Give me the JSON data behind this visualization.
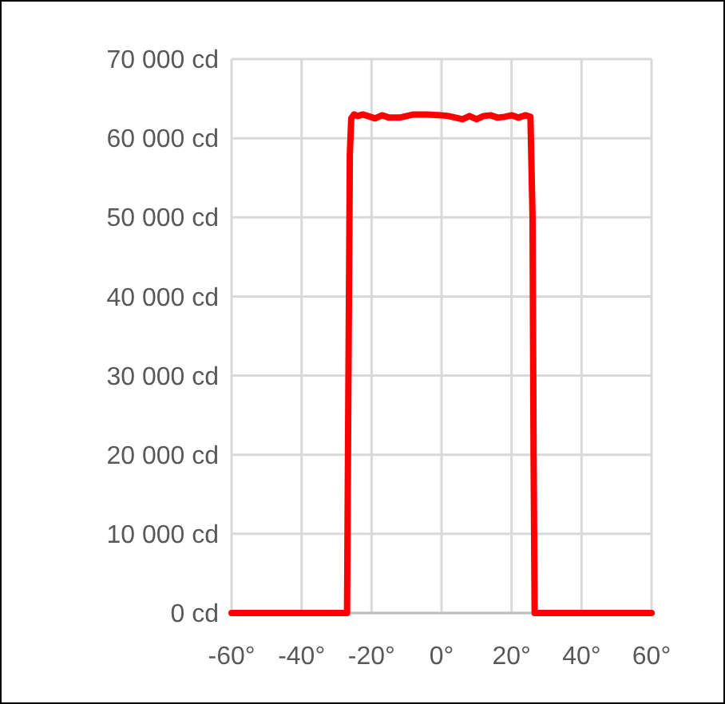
{
  "chart_data": {
    "type": "line",
    "x": [
      -60,
      -27,
      -26.6,
      -26.2,
      -25.8,
      -25,
      -24,
      -22.5,
      -21,
      -19,
      -17,
      -15,
      -12,
      -10,
      -8,
      -4,
      0,
      2,
      4,
      6,
      8,
      10,
      12,
      14,
      16,
      18,
      20,
      22,
      24,
      25.4,
      26,
      26.3,
      26.6,
      60
    ],
    "series": [
      {
        "color": "#ff0000",
        "values": [
          0,
          0,
          30000,
          58000,
          62500,
          63000,
          62800,
          63000,
          62800,
          62500,
          62900,
          62600,
          62600,
          62800,
          63000,
          63000,
          62900,
          62800,
          62600,
          62400,
          62800,
          62400,
          62800,
          62900,
          62600,
          62700,
          62900,
          62600,
          62900,
          62700,
          50000,
          20000,
          0,
          0
        ]
      }
    ],
    "xlim": [
      -60,
      60
    ],
    "xticks": [
      {
        "value": -60,
        "label": "-60°"
      },
      {
        "value": -40,
        "label": "-40°"
      },
      {
        "value": -20,
        "label": "-20°"
      },
      {
        "value": 0,
        "label": "0°"
      },
      {
        "value": 20,
        "label": "20°"
      },
      {
        "value": 40,
        "label": "40°"
      },
      {
        "value": 60,
        "label": "60°"
      }
    ],
    "ylim": [
      0,
      70000
    ],
    "yticks": [
      {
        "value": 0,
        "label": "0 cd"
      },
      {
        "value": 10000,
        "label": "10 000 cd"
      },
      {
        "value": 20000,
        "label": "20 000 cd"
      },
      {
        "value": 30000,
        "label": "30 000 cd"
      },
      {
        "value": 40000,
        "label": "40 000 cd"
      },
      {
        "value": 50000,
        "label": "50 000 cd"
      },
      {
        "value": 60000,
        "label": "60 000 cd"
      },
      {
        "value": 70000,
        "label": "70 000 cd"
      }
    ],
    "grid": true,
    "marker": "none",
    "line_style": "solid"
  }
}
